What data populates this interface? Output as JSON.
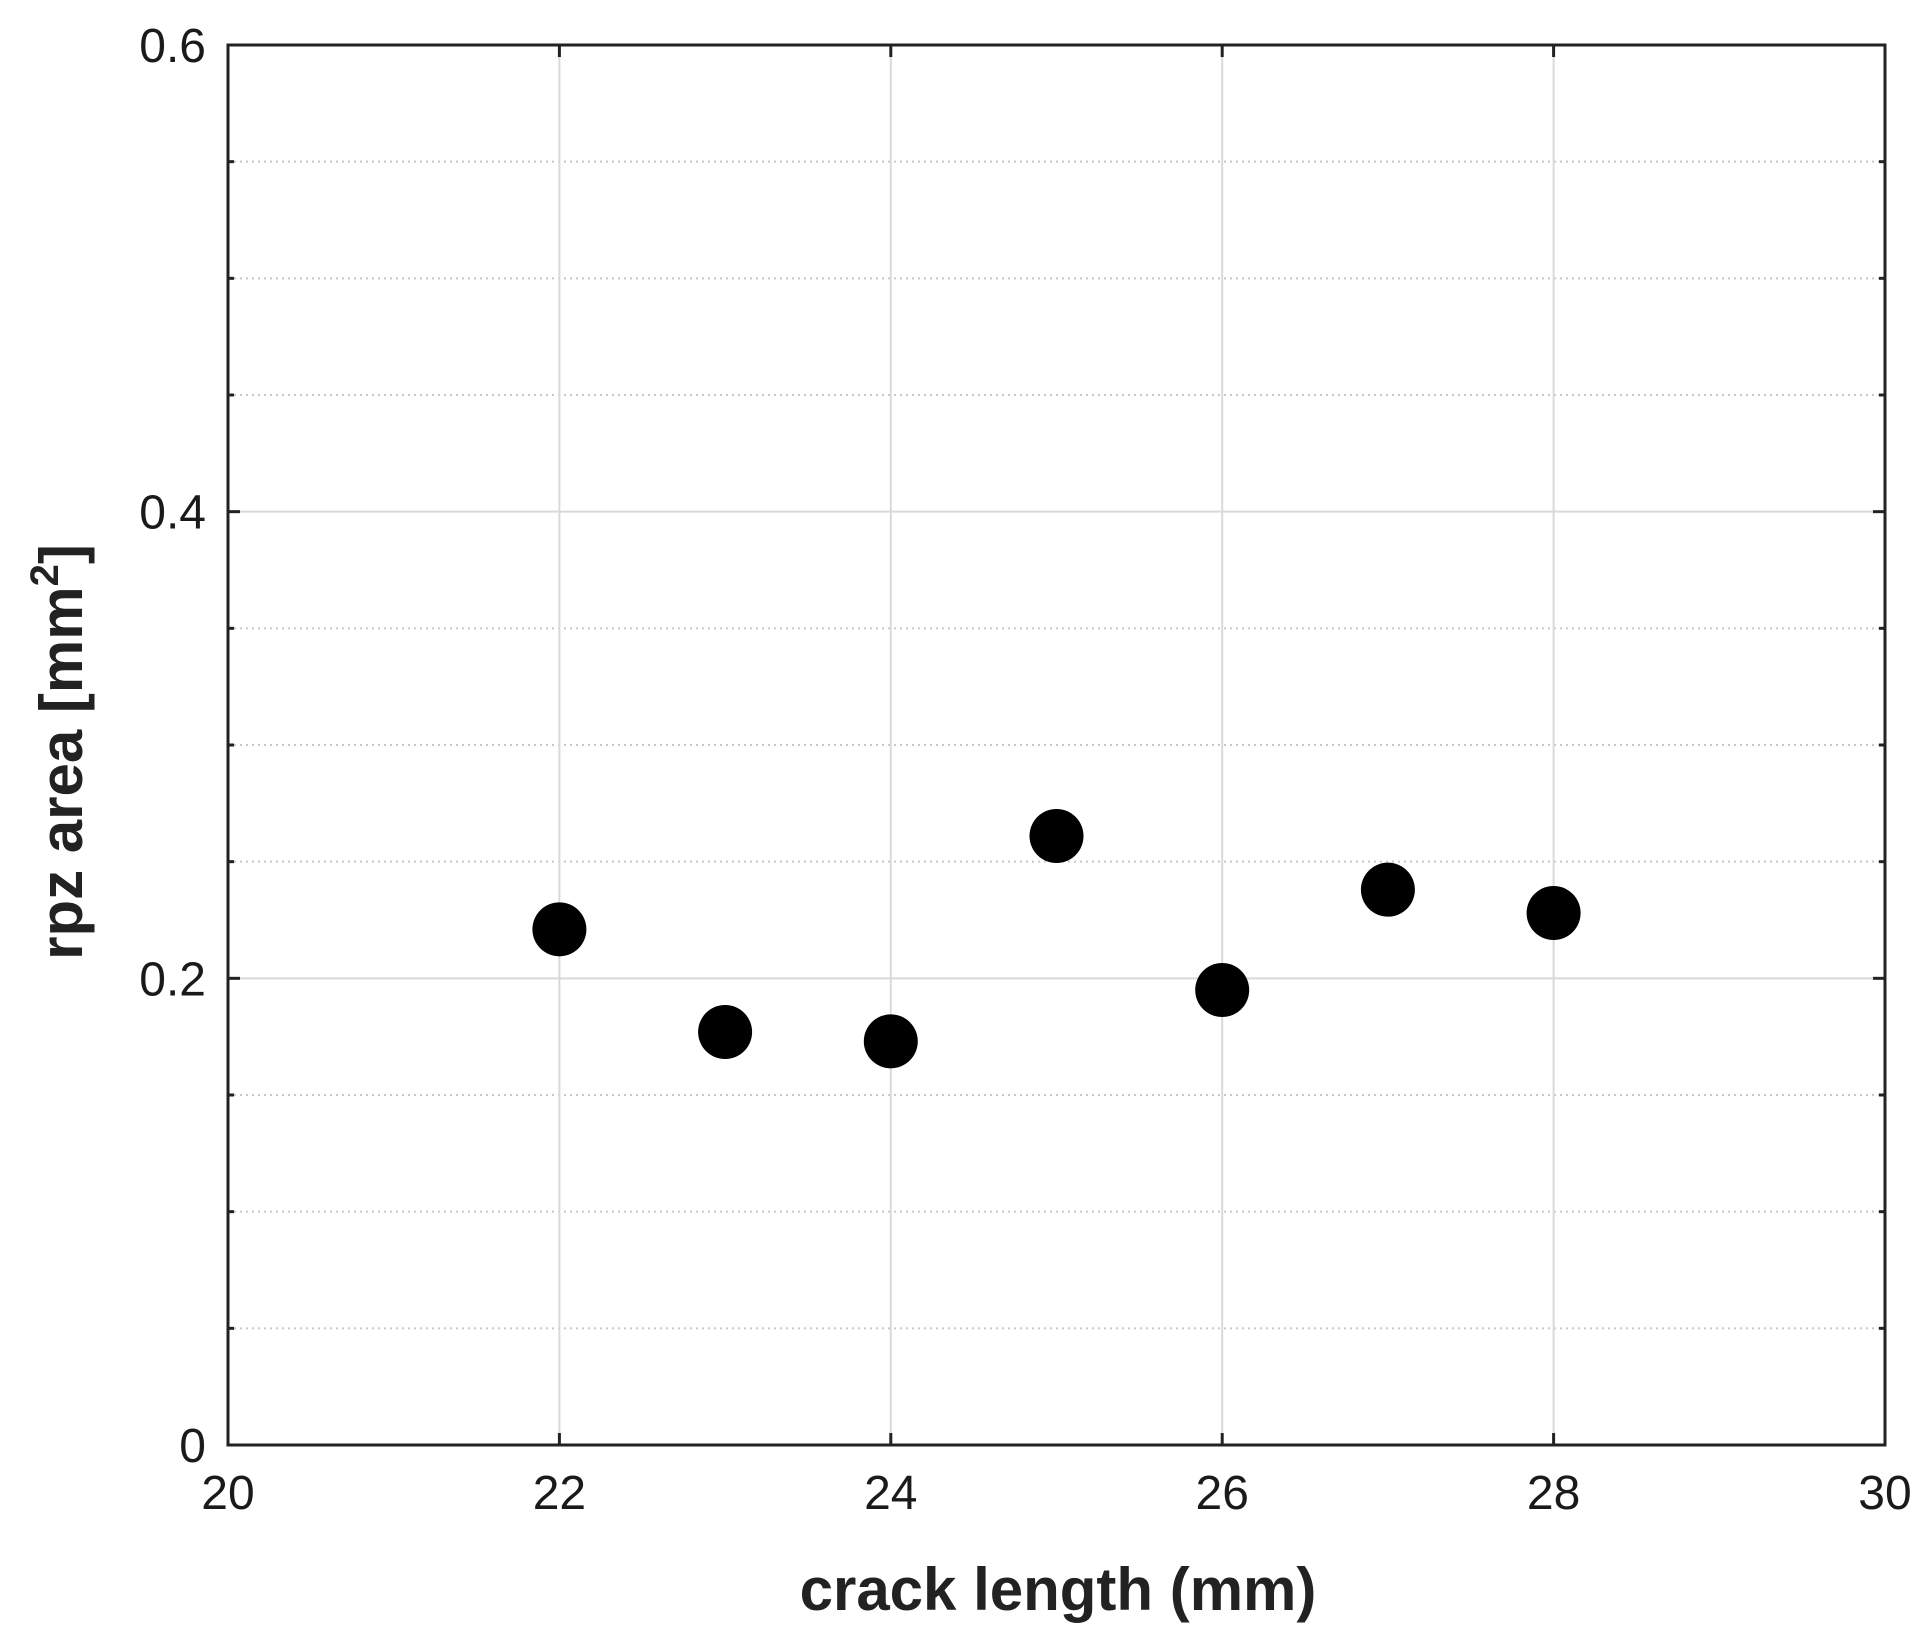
{
  "chart_data": {
    "type": "scatter",
    "xlabel": "crack length (mm)",
    "ylabel_main": "rpz area [mm",
    "ylabel_sup": "2",
    "ylabel_end": "]",
    "xlim": [
      20,
      30
    ],
    "ylim": [
      0,
      0.6
    ],
    "x_ticks": [
      20,
      22,
      24,
      26,
      28,
      30
    ],
    "x_tick_labels": [
      "20",
      "22",
      "24",
      "26",
      "28",
      "30"
    ],
    "y_ticks": [
      0,
      0.2,
      0.4,
      0.6
    ],
    "y_tick_labels": [
      "0",
      "0.2",
      "0.4",
      "0.6"
    ],
    "y_minor_step": 0.05,
    "grid": true,
    "marker_color": "#000000",
    "series": [
      {
        "x": [
          22,
          23,
          24,
          25,
          26,
          27,
          28
        ],
        "y": [
          0.221,
          0.177,
          0.173,
          0.261,
          0.195,
          0.238,
          0.228
        ]
      }
    ]
  }
}
